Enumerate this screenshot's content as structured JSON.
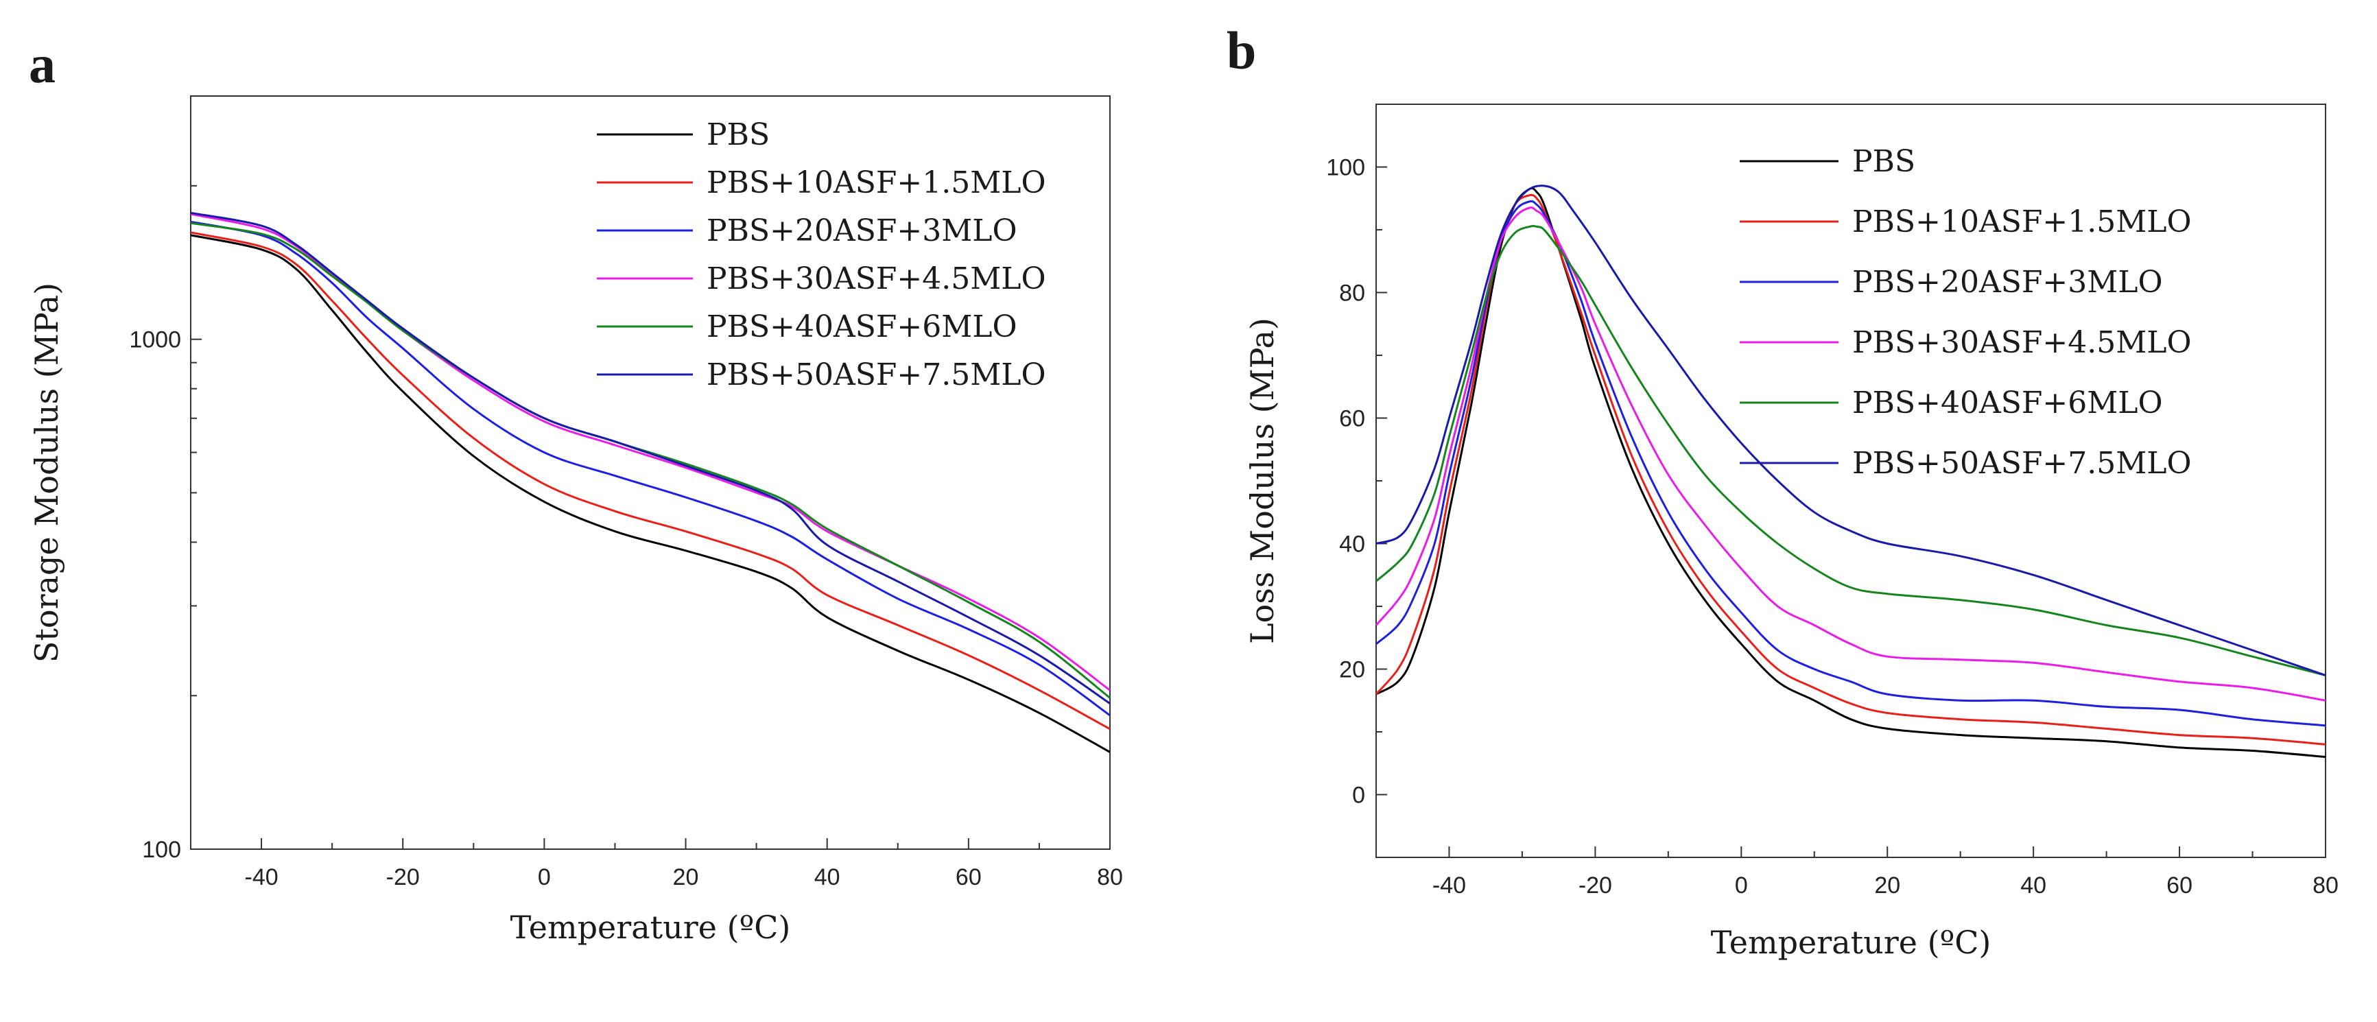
{
  "panels": {
    "a": {
      "letter": "a"
    },
    "b": {
      "letter": "b"
    }
  },
  "chart_data": [
    {
      "id": "a",
      "type": "line",
      "title": "",
      "xlabel": "Temperature (ºC)",
      "ylabel": "Storage Modulus (MPa)",
      "yscale": "log",
      "xlim": [
        -50,
        80
      ],
      "ylim": [
        100,
        3000
      ],
      "xticks": [
        -40,
        -20,
        0,
        20,
        40,
        60,
        80
      ],
      "xtick_labels": [
        "-40",
        "-20",
        "0",
        "20",
        "40",
        "60",
        "80"
      ],
      "yticks": [
        100,
        1000
      ],
      "ytick_labels": [
        "100",
        "1000"
      ],
      "legend_position": "top-right",
      "x": [
        -50,
        -40,
        -35,
        -30,
        -25,
        -20,
        -10,
        0,
        10,
        20,
        30,
        35,
        40,
        50,
        60,
        70,
        80
      ],
      "series": [
        {
          "name": "PBS",
          "color": "#000000",
          "values": [
            1600,
            1500,
            1370,
            1140,
            940,
            790,
            590,
            480,
            420,
            385,
            350,
            325,
            285,
            245,
            215,
            185,
            155
          ]
        },
        {
          "name": "PBS+10ASF+1.5MLO",
          "color": "#e8201a",
          "values": [
            1620,
            1520,
            1400,
            1190,
            1000,
            850,
            640,
            520,
            460,
            420,
            380,
            355,
            315,
            275,
            240,
            205,
            172
          ]
        },
        {
          "name": "PBS+20ASF+3MLO",
          "color": "#1f1fe0",
          "values": [
            1700,
            1600,
            1470,
            1290,
            1100,
            960,
            730,
            600,
            540,
            490,
            440,
            410,
            370,
            310,
            270,
            230,
            183
          ]
        },
        {
          "name": "PBS+30ASF+4.5MLO",
          "color": "#e81de8",
          "values": [
            1760,
            1650,
            1520,
            1340,
            1180,
            1040,
            830,
            690,
            620,
            560,
            500,
            470,
            420,
            360,
            310,
            260,
            205
          ]
        },
        {
          "name": "PBS+40ASF+6MLO",
          "color": "#17851f",
          "values": [
            1690,
            1610,
            1500,
            1330,
            1180,
            1040,
            840,
            700,
            630,
            570,
            510,
            475,
            425,
            360,
            305,
            255,
            198
          ]
        },
        {
          "name": "PBS+50ASF+7.5MLO",
          "color": "#1a1aa8",
          "values": [
            1770,
            1670,
            1530,
            1350,
            1190,
            1050,
            840,
            700,
            630,
            565,
            505,
            465,
            395,
            335,
            285,
            240,
            193
          ]
        }
      ]
    },
    {
      "id": "b",
      "type": "line",
      "title": "",
      "xlabel": "Temperature (ºC)",
      "ylabel": "Loss Modulus (MPa)",
      "yscale": "linear",
      "xlim": [
        -50,
        80
      ],
      "ylim": [
        -10,
        110
      ],
      "xticks": [
        -40,
        -20,
        0,
        20,
        40,
        60,
        80
      ],
      "xtick_labels": [
        "-40",
        "-20",
        "0",
        "20",
        "40",
        "60",
        "80"
      ],
      "yticks": [
        0,
        20,
        40,
        60,
        80,
        100
      ],
      "ytick_labels": [
        "0",
        "20",
        "40",
        "60",
        "80",
        "100"
      ],
      "legend_position": "top-right",
      "series": [
        {
          "name": "PBS",
          "color": "#000000",
          "x": [
            -50,
            -47,
            -45,
            -42,
            -40,
            -37,
            -35,
            -33,
            -31,
            -29,
            -28,
            -27,
            -25,
            -22,
            -20,
            -15,
            -10,
            -5,
            0,
            5,
            10,
            15,
            20,
            30,
            40,
            50,
            60,
            70,
            80
          ],
          "values": [
            16,
            18,
            22,
            33,
            45,
            62,
            75,
            87,
            94,
            96.5,
            96,
            94,
            87,
            76,
            68,
            52,
            40,
            31,
            24,
            18,
            15,
            12,
            10.5,
            9.5,
            9,
            8.5,
            7.5,
            7,
            6
          ]
        },
        {
          "name": "PBS+10ASF+1.5MLO",
          "color": "#e8201a",
          "x": [
            -50,
            -47,
            -45,
            -42,
            -40,
            -37,
            -35,
            -33,
            -31,
            -29,
            -28,
            -27,
            -25,
            -22,
            -20,
            -15,
            -10,
            -5,
            0,
            5,
            10,
            15,
            20,
            30,
            40,
            50,
            60,
            70,
            80
          ],
          "values": [
            16,
            20,
            25,
            36,
            48,
            64,
            77,
            88,
            94,
            95.5,
            95,
            93,
            87,
            77,
            70,
            54,
            42,
            33,
            26,
            20,
            17,
            14.5,
            13,
            12,
            11.5,
            10.5,
            9.5,
            9,
            8
          ]
        },
        {
          "name": "PBS+20ASF+3MLO",
          "color": "#1f1fe0",
          "x": [
            -50,
            -47,
            -45,
            -42,
            -40,
            -37,
            -35,
            -33,
            -31,
            -29,
            -28,
            -27,
            -25,
            -22,
            -20,
            -15,
            -10,
            -5,
            0,
            5,
            10,
            15,
            20,
            30,
            40,
            50,
            60,
            70,
            80
          ],
          "values": [
            24,
            27,
            31,
            40,
            51,
            66,
            78,
            88,
            93,
            94.5,
            94,
            92.5,
            88,
            79,
            72,
            57,
            45,
            36,
            29,
            23,
            20,
            18,
            16,
            15,
            15,
            14,
            13.5,
            12,
            11
          ]
        },
        {
          "name": "PBS+30ASF+4.5MLO",
          "color": "#e81de8",
          "x": [
            -50,
            -47,
            -45,
            -42,
            -40,
            -37,
            -35,
            -33,
            -31,
            -29,
            -28,
            -27,
            -25,
            -22,
            -20,
            -15,
            -10,
            -5,
            0,
            5,
            10,
            15,
            20,
            30,
            40,
            50,
            60,
            70,
            80
          ],
          "values": [
            27,
            31,
            35,
            44,
            54,
            68,
            79,
            88,
            92,
            93.5,
            93,
            92,
            88,
            81,
            75,
            62,
            51,
            43,
            36,
            30,
            27,
            24,
            22,
            21.5,
            21,
            19.5,
            18,
            17,
            15
          ]
        },
        {
          "name": "PBS+40ASF+6MLO",
          "color": "#17851f",
          "x": [
            -50,
            -47,
            -45,
            -42,
            -40,
            -37,
            -35,
            -33,
            -31,
            -29,
            -28,
            -27,
            -25,
            -22,
            -20,
            -15,
            -10,
            -5,
            0,
            5,
            10,
            15,
            20,
            30,
            40,
            50,
            60,
            70,
            80
          ],
          "values": [
            34,
            37,
            40,
            48,
            57,
            70,
            79,
            86,
            89.5,
            90.5,
            90.5,
            90,
            87,
            82,
            78,
            68,
            59,
            51,
            45,
            40,
            36,
            33,
            32,
            31,
            29.5,
            27,
            25,
            22,
            19
          ]
        },
        {
          "name": "PBS+50ASF+7.5MLO",
          "color": "#1a1aa8",
          "x": [
            -50,
            -47,
            -45,
            -42,
            -40,
            -37,
            -35,
            -33,
            -31,
            -29,
            -27,
            -25,
            -23,
            -20,
            -15,
            -10,
            -5,
            0,
            5,
            10,
            15,
            20,
            30,
            40,
            50,
            60,
            70,
            80
          ],
          "values": [
            40,
            41,
            44,
            52,
            60,
            72,
            81,
            89,
            94,
            96.5,
            97,
            96,
            93,
            88,
            79,
            71,
            63,
            56,
            50,
            45,
            42,
            40,
            38,
            35,
            31,
            27,
            23,
            19
          ]
        }
      ]
    }
  ]
}
